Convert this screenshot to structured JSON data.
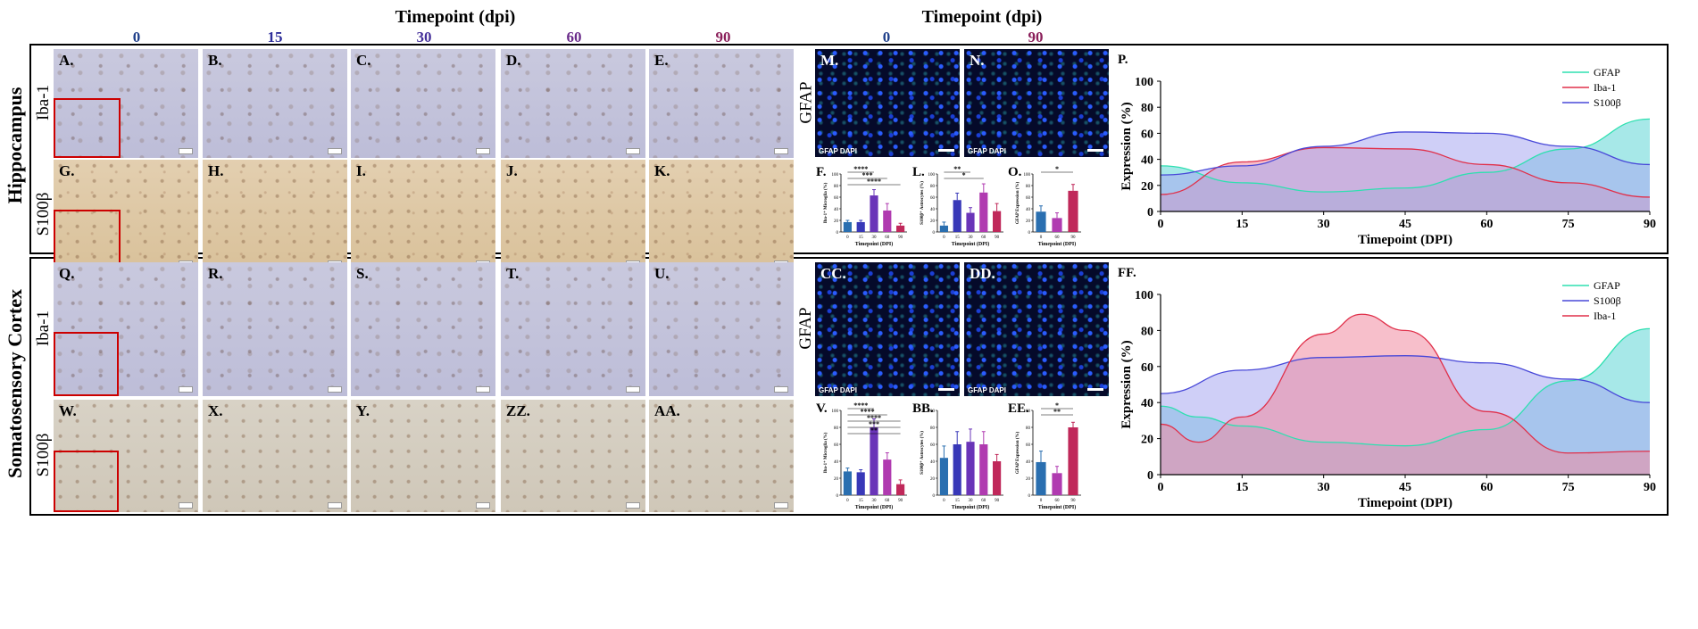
{
  "headers": {
    "timepoint_left": "Timepoint (dpi)",
    "timepoint_right": "Timepoint (dpi)"
  },
  "timepoints_left": [
    "0",
    "15",
    "30",
    "60",
    "90"
  ],
  "timepoints_right": [
    "0",
    "90"
  ],
  "tp_colors": [
    "#1f3f8a",
    "#2e2e9a",
    "#45309a",
    "#6a2b8a",
    "#8a1f5a"
  ],
  "regions": [
    {
      "title": "Hippocampus",
      "stains": [
        "Iba-1",
        "S100β"
      ],
      "row1": [
        "A.",
        "B.",
        "C.",
        "D.",
        "E."
      ],
      "row2": [
        "G.",
        "H.",
        "I.",
        "J.",
        "K."
      ],
      "if": [
        "M.",
        "N."
      ],
      "if_stain": "GFAP",
      "if_caption": "GFAP DAPI",
      "bars": [
        {
          "label": "F.",
          "ylabel": "Iba-1⁺ Microglia (%)",
          "xlabel": "Timepoint (DPI)",
          "cats": [
            "0",
            "15",
            "30",
            "60",
            "90"
          ],
          "values": [
            17,
            17,
            63,
            37,
            11
          ],
          "errors": [
            3,
            3,
            10,
            12,
            4
          ],
          "ylim": [
            0,
            100
          ],
          "yticks": [
            "0",
            "20",
            "40",
            "60",
            "80",
            "100"
          ],
          "sig": [
            "****",
            "***",
            "****"
          ]
        },
        {
          "label": "L.",
          "ylabel": "S100β⁺ Astrocytes (%)",
          "xlabel": "Timepoint (DPI)",
          "cats": [
            "0",
            "15",
            "30",
            "60",
            "90"
          ],
          "values": [
            11,
            55,
            33,
            68,
            36
          ],
          "errors": [
            6,
            12,
            9,
            15,
            13
          ],
          "ylim": [
            0,
            100
          ],
          "yticks": [
            "0",
            "20",
            "40",
            "60",
            "80",
            "100"
          ],
          "sig": [
            "**",
            "*"
          ]
        },
        {
          "label": "O.",
          "ylabel": "GFAP Expression (%)",
          "xlabel": "Timepoint (DPI)",
          "cats": [
            "0",
            "60",
            "90"
          ],
          "values": [
            35,
            24,
            71
          ],
          "errors": [
            10,
            9,
            11
          ],
          "ylim": [
            0,
            100
          ],
          "yticks": [
            "0",
            "20",
            "40",
            "60",
            "80",
            "100"
          ],
          "sig": [
            "*"
          ]
        }
      ],
      "curve": {
        "label": "P.",
        "ylabel": "Expression (%)",
        "xlabel": "Timepoint (DPI)",
        "xticks": [
          "0",
          "15",
          "30",
          "45",
          "60",
          "75",
          "90"
        ],
        "yticks": [
          "0",
          "20",
          "40",
          "60",
          "80",
          "100"
        ],
        "legend": [
          "GFAP",
          "Iba-1",
          "S100β"
        ]
      }
    },
    {
      "title": "Somatosensory Cortex",
      "stains": [
        "Iba-1",
        "S100β"
      ],
      "row1": [
        "Q.",
        "R.",
        "S.",
        "T.",
        "U."
      ],
      "row2": [
        "W.",
        "X.",
        "Y.",
        "ZZ.",
        "AA."
      ],
      "if": [
        "CC.",
        "DD."
      ],
      "if_stain": "GFAP",
      "if_caption": "GFAP DAPI",
      "bars": [
        {
          "label": "V.",
          "ylabel": "Iba-1⁺ Microglia (%)",
          "xlabel": "Timepoint (DPI)",
          "cats": [
            "0",
            "15",
            "30",
            "60",
            "90"
          ],
          "values": [
            28,
            27,
            80,
            42,
            13
          ],
          "errors": [
            4,
            3,
            10,
            8,
            5
          ],
          "ylim": [
            0,
            100
          ],
          "yticks": [
            "0",
            "20",
            "40",
            "60",
            "80",
            "100"
          ],
          "sig": [
            "****",
            "****",
            "****",
            "***",
            "**"
          ]
        },
        {
          "label": "BB.",
          "ylabel": "S100β⁺ Astrocytes (%)",
          "xlabel": "Timepoint (DPI)",
          "cats": [
            "0",
            "15",
            "30",
            "60",
            "90"
          ],
          "values": [
            44,
            60,
            63,
            60,
            40
          ],
          "errors": [
            14,
            15,
            15,
            15,
            8
          ],
          "ylim": [
            0,
            100
          ],
          "yticks": [
            "0",
            "20",
            "40",
            "60",
            "80",
            "100"
          ],
          "sig": []
        },
        {
          "label": "EE.",
          "ylabel": "GFAP Expression (%)",
          "xlabel": "Timepoint (DPI)",
          "cats": [
            "0",
            "60",
            "90"
          ],
          "values": [
            39,
            26,
            80
          ],
          "errors": [
            13,
            8,
            6
          ],
          "ylim": [
            0,
            100
          ],
          "yticks": [
            "0",
            "20",
            "40",
            "60",
            "80",
            "100"
          ],
          "sig": [
            "*",
            "**"
          ]
        }
      ],
      "curve": {
        "label": "FF.",
        "ylabel": "Expression (%)",
        "xlabel": "Timepoint (DPI)",
        "xticks": [
          "0",
          "15",
          "30",
          "45",
          "60",
          "75",
          "90"
        ],
        "yticks": [
          "0",
          "20",
          "40",
          "60",
          "80",
          "100"
        ],
        "legend": [
          "GFAP",
          "S100β",
          "Iba-1"
        ]
      }
    }
  ],
  "colors": {
    "gfap": "#2ee0b0",
    "iba": "#e0304a",
    "s100": "#4848d8",
    "gfap_fill": "#5fd6d6",
    "iba_fill": "#f08aa0",
    "s100_fill": "#a8a8f0"
  },
  "chart_data": [
    {
      "type": "bar",
      "title": "",
      "xlabel": "Timepoint (DPI)",
      "ylabel": "Iba-1⁺ Microglia (%)",
      "categories": [
        "0",
        "15",
        "30",
        "60",
        "90"
      ],
      "values": [
        17,
        17,
        63,
        37,
        11
      ],
      "ylim": [
        0,
        100
      ]
    },
    {
      "type": "bar",
      "title": "",
      "xlabel": "Timepoint (DPI)",
      "ylabel": "S100β⁺ Astrocytes (%)",
      "categories": [
        "0",
        "15",
        "30",
        "60",
        "90"
      ],
      "values": [
        11,
        55,
        33,
        68,
        36
      ],
      "ylim": [
        0,
        100
      ]
    },
    {
      "type": "bar",
      "title": "",
      "xlabel": "Timepoint (DPI)",
      "ylabel": "GFAP Expression (%)",
      "categories": [
        "0",
        "60",
        "90"
      ],
      "values": [
        35,
        24,
        71
      ],
      "ylim": [
        0,
        100
      ]
    },
    {
      "type": "area",
      "title": "",
      "xlabel": "Timepoint (DPI)",
      "ylabel": "Expression (%)",
      "xlim": [
        0,
        90
      ],
      "ylim": [
        0,
        100
      ],
      "legend": "top-right",
      "series": [
        {
          "name": "GFAP",
          "x": [
            0,
            15,
            30,
            45,
            60,
            75,
            90
          ],
          "values": [
            35,
            22,
            15,
            18,
            30,
            48,
            71
          ]
        },
        {
          "name": "Iba-1",
          "x": [
            0,
            15,
            30,
            45,
            60,
            75,
            90
          ],
          "values": [
            13,
            38,
            49,
            48,
            36,
            22,
            11
          ]
        },
        {
          "name": "S100β",
          "x": [
            0,
            15,
            30,
            45,
            60,
            75,
            90
          ],
          "values": [
            28,
            35,
            50,
            61,
            60,
            50,
            36
          ]
        }
      ]
    },
    {
      "type": "bar",
      "title": "",
      "xlabel": "Timepoint (DPI)",
      "ylabel": "Iba-1⁺ Microglia (%)",
      "categories": [
        "0",
        "15",
        "30",
        "60",
        "90"
      ],
      "values": [
        28,
        27,
        80,
        42,
        13
      ],
      "ylim": [
        0,
        100
      ]
    },
    {
      "type": "bar",
      "title": "",
      "xlabel": "Timepoint (DPI)",
      "ylabel": "S100β⁺ Astrocytes (%)",
      "categories": [
        "0",
        "15",
        "30",
        "60",
        "90"
      ],
      "values": [
        44,
        60,
        63,
        60,
        40
      ],
      "ylim": [
        0,
        100
      ]
    },
    {
      "type": "bar",
      "title": "",
      "xlabel": "Timepoint (DPI)",
      "ylabel": "GFAP Expression (%)",
      "categories": [
        "0",
        "60",
        "90"
      ],
      "values": [
        39,
        26,
        80
      ],
      "ylim": [
        0,
        100
      ]
    },
    {
      "type": "area",
      "title": "",
      "xlabel": "Timepoint (DPI)",
      "ylabel": "Expression (%)",
      "xlim": [
        0,
        90
      ],
      "ylim": [
        0,
        100
      ],
      "legend": "top-right",
      "series": [
        {
          "name": "GFAP",
          "x": [
            0,
            7,
            15,
            30,
            45,
            60,
            75,
            90
          ],
          "values": [
            38,
            32,
            27,
            18,
            16,
            25,
            52,
            81
          ]
        },
        {
          "name": "S100β",
          "x": [
            0,
            15,
            30,
            45,
            60,
            75,
            90
          ],
          "values": [
            45,
            58,
            65,
            66,
            62,
            53,
            40
          ]
        },
        {
          "name": "Iba-1",
          "x": [
            0,
            7,
            15,
            30,
            37,
            45,
            60,
            75,
            90
          ],
          "values": [
            28,
            18,
            32,
            78,
            89,
            80,
            35,
            12,
            13
          ]
        }
      ]
    }
  ]
}
